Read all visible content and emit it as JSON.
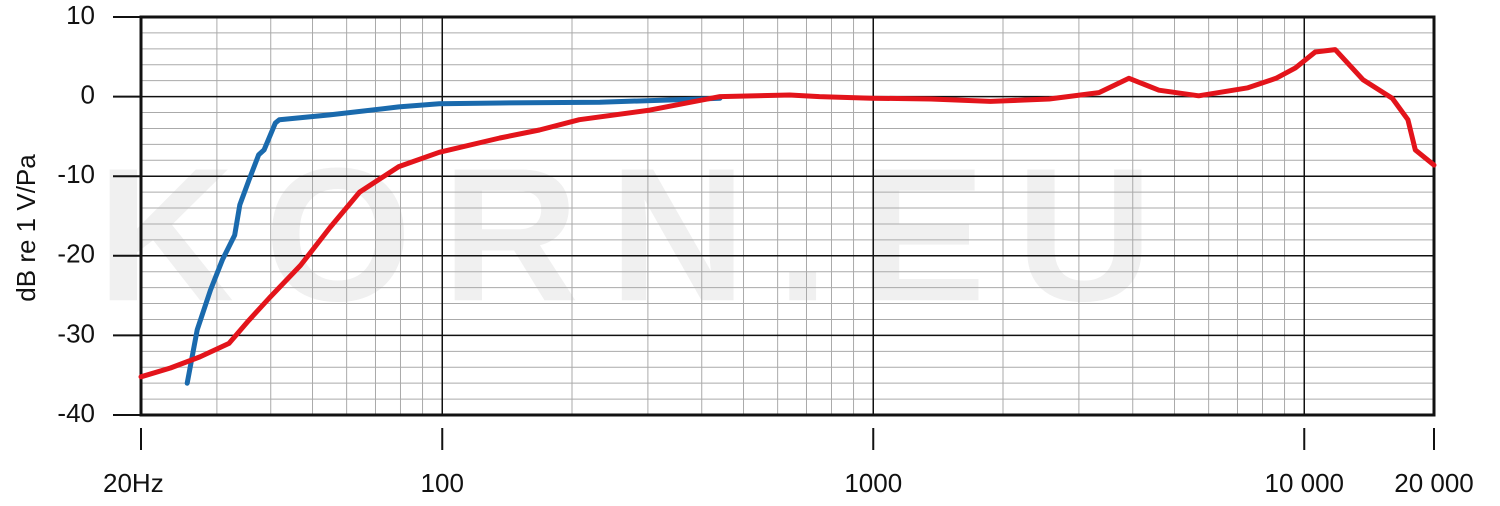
{
  "chart_data": {
    "type": "line",
    "xscale": "log",
    "y_label": "dB re 1 V/Pa",
    "watermark": "KORN.EU",
    "xlim": [
      20,
      20000
    ],
    "xticks": [
      {
        "value": 20,
        "label": "20Hz"
      },
      100,
      1000,
      {
        "value": 10000,
        "label": "10 000"
      },
      {
        "value": 20000,
        "label": "20 000"
      }
    ],
    "xminorticks": [
      30,
      40,
      50,
      60,
      70,
      80,
      90,
      200,
      300,
      400,
      500,
      600,
      700,
      800,
      900,
      2000,
      3000,
      4000,
      5000,
      6000,
      7000,
      8000,
      9000
    ],
    "ylim": [
      -40,
      10
    ],
    "yticks": [
      -40,
      -30,
      -20,
      -10,
      0,
      10
    ],
    "yminorticks": [
      -38,
      -36,
      -34,
      -32,
      -28,
      -26,
      -24,
      -22,
      -18,
      -16,
      -14,
      -12,
      -8,
      -6,
      -4,
      -2,
      2,
      4,
      6,
      8
    ],
    "grid": true,
    "series": [
      {
        "color": "#1a6aad",
        "x": [
          25.6,
          27,
          29,
          30.9,
          33,
          33.9,
          35.6,
          37.5,
          38.6,
          41,
          41.9,
          54.8,
          79.3,
          98.4,
          136,
          232,
          397,
          441
        ],
        "values": [
          -36,
          -29.3,
          -24.3,
          -20.5,
          -17.4,
          -13.6,
          -10.5,
          -7.3,
          -6.7,
          -3.3,
          -2.9,
          -2.3,
          -1.3,
          -0.9,
          -0.8,
          -0.7,
          -0.3,
          -0.2
        ]
      },
      {
        "color": "#e3141b",
        "x": [
          20,
          23.4,
          27.4,
          32,
          35.6,
          39.7,
          46.9,
          54.8,
          64.3,
          79.3,
          98.4,
          136,
          168,
          208,
          303,
          441,
          640,
          750,
          990,
          1360,
          1870,
          2560,
          3340,
          3920,
          4600,
          5690,
          7400,
          8600,
          9540,
          10600,
          11800,
          13700,
          16000,
          17400,
          18100,
          20000
        ],
        "values": [
          -35.2,
          -34.1,
          -32.7,
          -31,
          -28.1,
          -25.3,
          -21.2,
          -16.5,
          -12,
          -8.8,
          -7,
          -5.2,
          -4.2,
          -2.9,
          -1.7,
          0,
          0.2,
          0,
          -0.2,
          -0.3,
          -0.6,
          -0.3,
          0.5,
          2.3,
          0.8,
          0.1,
          1.1,
          2.3,
          3.6,
          5.6,
          5.9,
          2.1,
          -0.2,
          -2.9,
          -6.7,
          -8.6
        ]
      }
    ]
  }
}
